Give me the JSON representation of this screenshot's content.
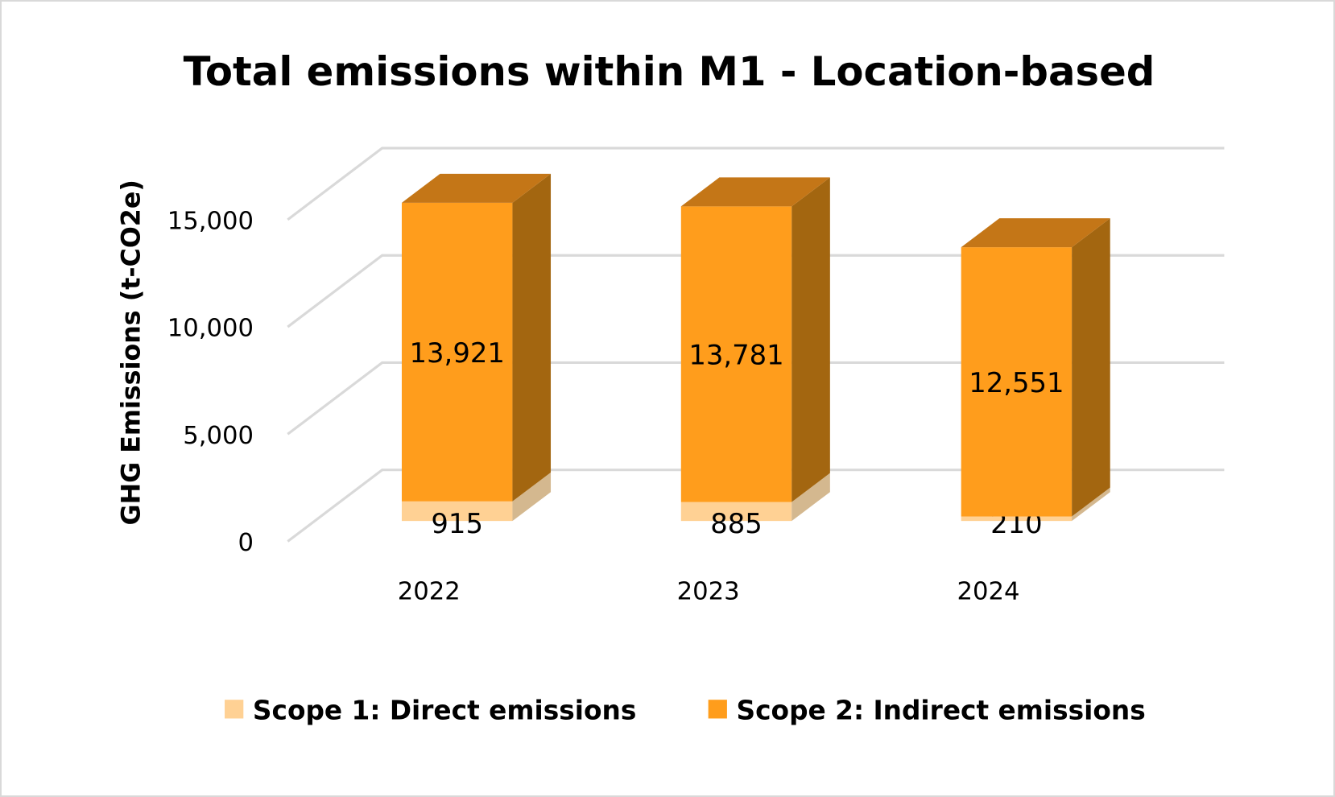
{
  "chart_data": {
    "type": "bar",
    "stacked": true,
    "three_d": true,
    "title": "Total emissions within M1 - Location-based",
    "xlabel": "",
    "ylabel": "GHG Emissions (t-CO2e)",
    "ylim": [
      0,
      20000
    ],
    "yticks": [
      0,
      5000,
      10000,
      15000
    ],
    "ytick_labels": [
      "0",
      "5,000",
      "10,000",
      "15,000"
    ],
    "grid": true,
    "categories": [
      "2022",
      "2023",
      "2024"
    ],
    "series": [
      {
        "name": "Scope 1: Direct emissions",
        "values": [
          915,
          885,
          210
        ],
        "labels": [
          "915",
          "885",
          "210"
        ],
        "color": "#FFD194",
        "side_color": "#D4B88F"
      },
      {
        "name": "Scope 2: Indirect emissions",
        "values": [
          13921,
          13781,
          12551
        ],
        "labels": [
          "13,921",
          "13,781",
          "12,551"
        ],
        "color": "#FF9D1C",
        "side_color": "#A36610",
        "top_color": "#C47617"
      }
    ],
    "legend": "bottom"
  }
}
